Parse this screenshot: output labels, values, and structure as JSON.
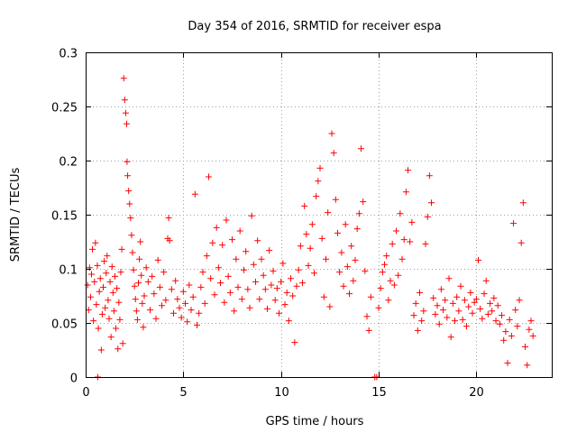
{
  "chart_data": {
    "type": "scatter",
    "title": "Day 354 of 2016, SRMTID for receiver espa",
    "xlabel": "GPS time / hours",
    "ylabel": "SRMTID / TECUs",
    "xlim": [
      0,
      23.86
    ],
    "ylim": [
      0,
      0.3
    ],
    "x_ticks": [
      0,
      5,
      10,
      15,
      20
    ],
    "x_tick_labels": [
      "0",
      "5",
      "10",
      "15",
      "20"
    ],
    "y_ticks": [
      0,
      0.05,
      0.1,
      0.15,
      0.2,
      0.25,
      0.3
    ],
    "y_tick_labels": [
      "0",
      "0.05",
      "0.1",
      "0.15",
      "0.2",
      "0.25",
      "0.3"
    ],
    "grid": true,
    "marker": "plus",
    "color": "#ff0000",
    "series": [
      {
        "name": "SRMTID",
        "points": [
          [
            0.1,
            0.085
          ],
          [
            0.15,
            0.062
          ],
          [
            0.2,
            0.101
          ],
          [
            0.25,
            0.074
          ],
          [
            0.3,
            0.095
          ],
          [
            0.35,
            0.118
          ],
          [
            0.4,
            0.052
          ],
          [
            0.45,
            0.088
          ],
          [
            0.5,
            0.124
          ],
          [
            0.55,
            0.067
          ],
          [
            0.6,
            0.103
          ],
          [
            0.62,
            0.0
          ],
          [
            0.65,
            0.045
          ],
          [
            0.7,
            0.079
          ],
          [
            0.75,
            0.091
          ],
          [
            0.8,
            0.025
          ],
          [
            0.85,
            0.058
          ],
          [
            0.9,
            0.083
          ],
          [
            0.95,
            0.107
          ],
          [
            1.0,
            0.064
          ],
          [
            1.05,
            0.096
          ],
          [
            1.1,
            0.112
          ],
          [
            1.15,
            0.071
          ],
          [
            1.2,
            0.054
          ],
          [
            1.25,
            0.088
          ],
          [
            1.3,
            0.037
          ],
          [
            1.35,
            0.102
          ],
          [
            1.4,
            0.078
          ],
          [
            1.45,
            0.061
          ],
          [
            1.5,
            0.093
          ],
          [
            1.55,
            0.045
          ],
          [
            1.6,
            0.082
          ],
          [
            1.65,
            0.026
          ],
          [
            1.7,
            0.069
          ],
          [
            1.75,
            0.053
          ],
          [
            1.8,
            0.097
          ],
          [
            1.85,
            0.118
          ],
          [
            1.9,
            0.031
          ],
          [
            1.95,
            0.276
          ],
          [
            2.0,
            0.256
          ],
          [
            2.05,
            0.244
          ],
          [
            2.1,
            0.234
          ],
          [
            2.12,
            0.199
          ],
          [
            2.15,
            0.186
          ],
          [
            2.2,
            0.172
          ],
          [
            2.25,
            0.16
          ],
          [
            2.3,
            0.147
          ],
          [
            2.35,
            0.131
          ],
          [
            2.4,
            0.115
          ],
          [
            2.45,
            0.099
          ],
          [
            2.5,
            0.084
          ],
          [
            2.55,
            0.072
          ],
          [
            2.6,
            0.061
          ],
          [
            2.65,
            0.053
          ],
          [
            2.7,
            0.087
          ],
          [
            2.75,
            0.109
          ],
          [
            2.8,
            0.125
          ],
          [
            2.85,
            0.094
          ],
          [
            2.9,
            0.068
          ],
          [
            2.95,
            0.046
          ],
          [
            3.0,
            0.075
          ],
          [
            3.1,
            0.101
          ],
          [
            3.2,
            0.088
          ],
          [
            3.3,
            0.062
          ],
          [
            3.4,
            0.093
          ],
          [
            3.5,
            0.077
          ],
          [
            3.6,
            0.054
          ],
          [
            3.7,
            0.108
          ],
          [
            3.8,
            0.083
          ],
          [
            3.9,
            0.066
          ],
          [
            4.0,
            0.097
          ],
          [
            4.1,
            0.071
          ],
          [
            4.2,
            0.128
          ],
          [
            4.25,
            0.147
          ],
          [
            4.3,
            0.126
          ],
          [
            4.4,
            0.081
          ],
          [
            4.5,
            0.059
          ],
          [
            4.6,
            0.089
          ],
          [
            4.7,
            0.072
          ],
          [
            4.8,
            0.064
          ],
          [
            4.9,
            0.055
          ],
          [
            5.0,
            0.079
          ],
          [
            5.1,
            0.068
          ],
          [
            5.2,
            0.051
          ],
          [
            5.3,
            0.085
          ],
          [
            5.4,
            0.062
          ],
          [
            5.5,
            0.074
          ],
          [
            5.6,
            0.169
          ],
          [
            5.7,
            0.048
          ],
          [
            5.8,
            0.059
          ],
          [
            5.9,
            0.083
          ],
          [
            6.0,
            0.097
          ],
          [
            6.1,
            0.068
          ],
          [
            6.2,
            0.112
          ],
          [
            6.3,
            0.185
          ],
          [
            6.4,
            0.091
          ],
          [
            6.5,
            0.124
          ],
          [
            6.6,
            0.076
          ],
          [
            6.7,
            0.138
          ],
          [
            6.8,
            0.101
          ],
          [
            6.9,
            0.087
          ],
          [
            7.0,
            0.122
          ],
          [
            7.1,
            0.069
          ],
          [
            7.2,
            0.145
          ],
          [
            7.3,
            0.093
          ],
          [
            7.4,
            0.078
          ],
          [
            7.5,
            0.127
          ],
          [
            7.6,
            0.061
          ],
          [
            7.7,
            0.109
          ],
          [
            7.8,
            0.083
          ],
          [
            7.9,
            0.135
          ],
          [
            8.0,
            0.072
          ],
          [
            8.1,
            0.099
          ],
          [
            8.2,
            0.116
          ],
          [
            8.3,
            0.081
          ],
          [
            8.4,
            0.064
          ],
          [
            8.5,
            0.149
          ],
          [
            8.6,
            0.104
          ],
          [
            8.7,
            0.088
          ],
          [
            8.8,
            0.126
          ],
          [
            8.9,
            0.072
          ],
          [
            9.0,
            0.109
          ],
          [
            9.1,
            0.094
          ],
          [
            9.2,
            0.081
          ],
          [
            9.3,
            0.063
          ],
          [
            9.4,
            0.117
          ],
          [
            9.5,
            0.085
          ],
          [
            9.6,
            0.098
          ],
          [
            9.7,
            0.071
          ],
          [
            9.8,
            0.082
          ],
          [
            9.9,
            0.059
          ],
          [
            10.0,
            0.088
          ],
          [
            10.1,
            0.105
          ],
          [
            10.2,
            0.067
          ],
          [
            10.3,
            0.078
          ],
          [
            10.4,
            0.052
          ],
          [
            10.5,
            0.091
          ],
          [
            10.6,
            0.075
          ],
          [
            10.7,
            0.032
          ],
          [
            10.8,
            0.084
          ],
          [
            10.9,
            0.099
          ],
          [
            11.0,
            0.121
          ],
          [
            11.1,
            0.087
          ],
          [
            11.2,
            0.158
          ],
          [
            11.3,
            0.132
          ],
          [
            11.4,
            0.103
          ],
          [
            11.5,
            0.119
          ],
          [
            11.6,
            0.141
          ],
          [
            11.7,
            0.096
          ],
          [
            11.8,
            0.167
          ],
          [
            11.9,
            0.181
          ],
          [
            12.0,
            0.193
          ],
          [
            12.1,
            0.128
          ],
          [
            12.2,
            0.074
          ],
          [
            12.3,
            0.109
          ],
          [
            12.4,
            0.152
          ],
          [
            12.5,
            0.065
          ],
          [
            12.6,
            0.225
          ],
          [
            12.7,
            0.207
          ],
          [
            12.8,
            0.164
          ],
          [
            12.9,
            0.133
          ],
          [
            13.0,
            0.097
          ],
          [
            13.1,
            0.115
          ],
          [
            13.2,
            0.084
          ],
          [
            13.3,
            0.141
          ],
          [
            13.4,
            0.102
          ],
          [
            13.5,
            0.077
          ],
          [
            13.6,
            0.121
          ],
          [
            13.7,
            0.089
          ],
          [
            13.8,
            0.108
          ],
          [
            13.9,
            0.137
          ],
          [
            14.0,
            0.151
          ],
          [
            14.1,
            0.211
          ],
          [
            14.2,
            0.162
          ],
          [
            14.3,
            0.098
          ],
          [
            14.4,
            0.056
          ],
          [
            14.5,
            0.043
          ],
          [
            14.6,
            0.074
          ],
          [
            14.8,
            0.0
          ],
          [
            14.9,
            0.0
          ],
          [
            15.0,
            0.064
          ],
          [
            15.1,
            0.082
          ],
          [
            15.2,
            0.097
          ],
          [
            15.3,
            0.104
          ],
          [
            15.4,
            0.112
          ],
          [
            15.5,
            0.071
          ],
          [
            15.6,
            0.089
          ],
          [
            15.7,
            0.123
          ],
          [
            15.8,
            0.085
          ],
          [
            15.9,
            0.135
          ],
          [
            16.0,
            0.094
          ],
          [
            16.1,
            0.151
          ],
          [
            16.2,
            0.109
          ],
          [
            16.3,
            0.127
          ],
          [
            16.4,
            0.171
          ],
          [
            16.5,
            0.191
          ],
          [
            16.6,
            0.125
          ],
          [
            16.7,
            0.143
          ],
          [
            16.8,
            0.057
          ],
          [
            16.9,
            0.068
          ],
          [
            17.0,
            0.043
          ],
          [
            17.1,
            0.078
          ],
          [
            17.2,
            0.052
          ],
          [
            17.3,
            0.061
          ],
          [
            17.4,
            0.123
          ],
          [
            17.5,
            0.148
          ],
          [
            17.6,
            0.186
          ],
          [
            17.7,
            0.161
          ],
          [
            17.8,
            0.073
          ],
          [
            17.9,
            0.058
          ],
          [
            18.0,
            0.066
          ],
          [
            18.1,
            0.049
          ],
          [
            18.2,
            0.081
          ],
          [
            18.3,
            0.062
          ],
          [
            18.4,
            0.071
          ],
          [
            18.5,
            0.055
          ],
          [
            18.6,
            0.091
          ],
          [
            18.7,
            0.037
          ],
          [
            18.8,
            0.068
          ],
          [
            18.9,
            0.052
          ],
          [
            19.0,
            0.074
          ],
          [
            19.1,
            0.061
          ],
          [
            19.2,
            0.084
          ],
          [
            19.3,
            0.053
          ],
          [
            19.4,
            0.071
          ],
          [
            19.5,
            0.047
          ],
          [
            19.6,
            0.065
          ],
          [
            19.7,
            0.078
          ],
          [
            19.8,
            0.059
          ],
          [
            19.9,
            0.069
          ],
          [
            20.0,
            0.072
          ],
          [
            20.1,
            0.108
          ],
          [
            20.2,
            0.063
          ],
          [
            20.3,
            0.054
          ],
          [
            20.4,
            0.077
          ],
          [
            20.5,
            0.089
          ],
          [
            20.6,
            0.058
          ],
          [
            20.7,
            0.068
          ],
          [
            20.8,
            0.061
          ],
          [
            20.9,
            0.073
          ],
          [
            21.0,
            0.052
          ],
          [
            21.1,
            0.066
          ],
          [
            21.2,
            0.049
          ],
          [
            21.3,
            0.057
          ],
          [
            21.4,
            0.034
          ],
          [
            21.5,
            0.042
          ],
          [
            21.6,
            0.013
          ],
          [
            21.7,
            0.053
          ],
          [
            21.8,
            0.038
          ],
          [
            21.9,
            0.142
          ],
          [
            22.0,
            0.062
          ],
          [
            22.1,
            0.047
          ],
          [
            22.2,
            0.071
          ],
          [
            22.3,
            0.124
          ],
          [
            22.4,
            0.161
          ],
          [
            22.5,
            0.028
          ],
          [
            22.6,
            0.011
          ],
          [
            22.7,
            0.044
          ],
          [
            22.8,
            0.052
          ],
          [
            22.9,
            0.038
          ]
        ]
      }
    ]
  }
}
